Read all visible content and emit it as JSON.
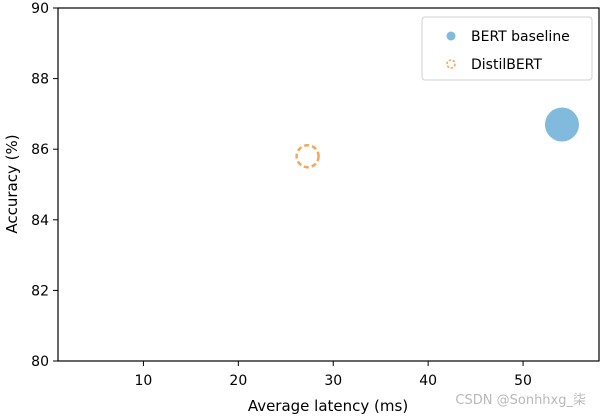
{
  "chart_data": {
    "type": "scatter",
    "xlabel": "Average latency (ms)",
    "ylabel": "Accuracy (%)",
    "xlim": [
      1,
      58
    ],
    "ylim": [
      80,
      90
    ],
    "xticks": [
      10,
      20,
      30,
      40,
      50
    ],
    "yticks": [
      80,
      82,
      84,
      86,
      88,
      90
    ],
    "grid": false,
    "legend_position": "top-right",
    "series": [
      {
        "name": "BERT baseline",
        "x": 54.1,
        "y": 86.7,
        "color": "#6baed6",
        "marker": "filled-circle"
      },
      {
        "name": "DistilBERT",
        "x": 27.3,
        "y": 85.8,
        "color": "#f5a65b",
        "marker": "dashed-open-circle"
      }
    ]
  },
  "watermark": "CSDN @Sonhhxg_柒"
}
